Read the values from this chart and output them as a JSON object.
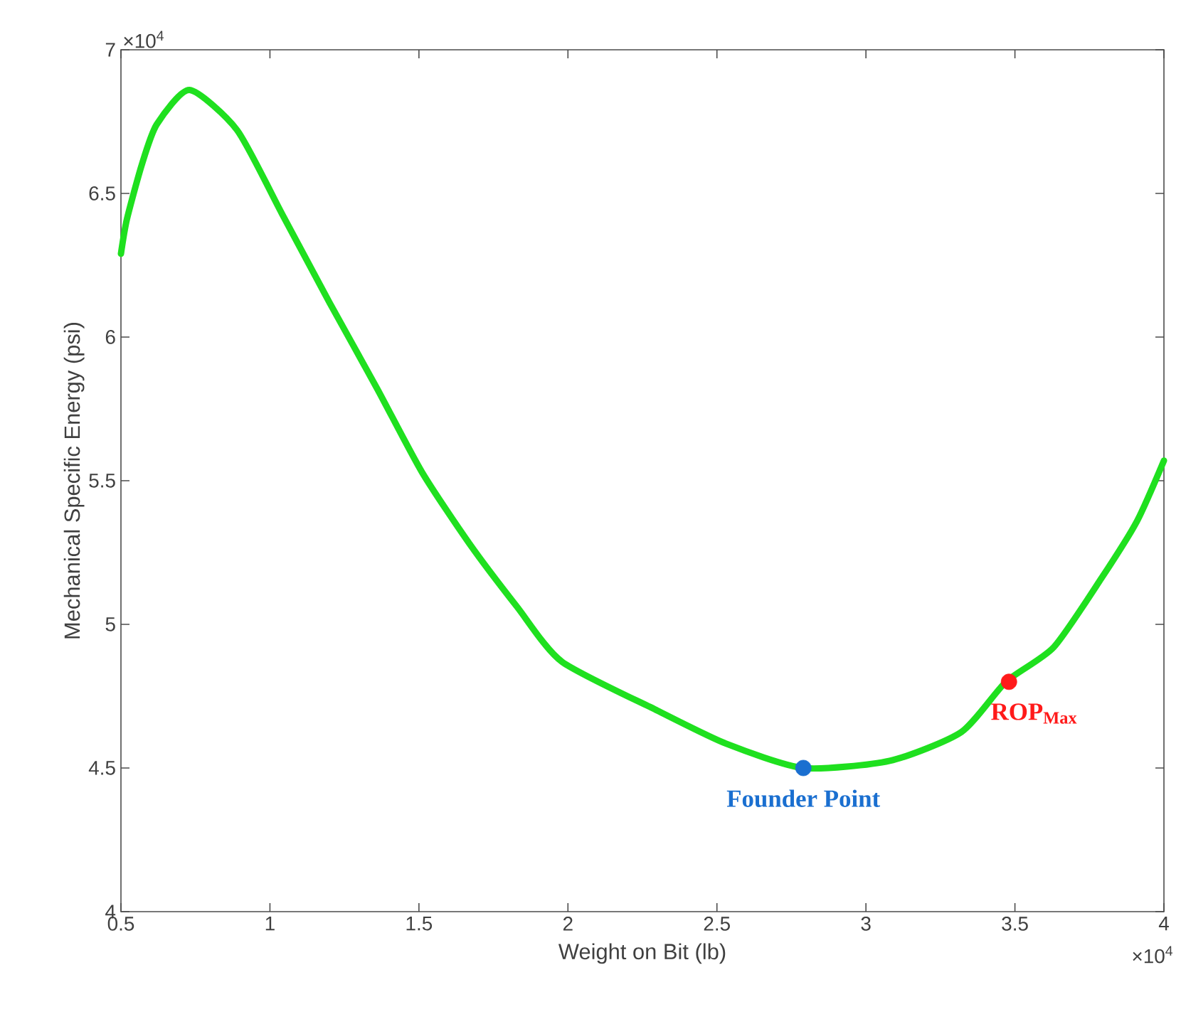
{
  "chart_data": {
    "type": "line",
    "xlabel": "Weight on Bit (lb)",
    "ylabel": "Mechanical Specific Energy (psi)",
    "xlim": [
      0.5,
      4
    ],
    "ylim": [
      4,
      7
    ],
    "xticks": [
      0.5,
      1,
      1.5,
      2,
      2.5,
      3,
      3.5,
      4
    ],
    "yticks": [
      4,
      4.5,
      5,
      5.5,
      6,
      6.5,
      7
    ],
    "grid": false,
    "series": [
      {
        "color": "#1fe01f",
        "x": [
          0.5,
          0.52,
          0.57,
          0.62,
          0.73,
          0.89,
          1.04,
          1.2,
          1.36,
          1.51,
          1.67,
          1.83,
          1.98,
          2.3,
          2.53,
          2.79,
          3.08,
          3.32,
          3.47,
          3.63,
          3.79,
          3.91,
          4.0
        ],
        "values": [
          6.29,
          6.41,
          6.6,
          6.74,
          6.86,
          6.72,
          6.43,
          6.12,
          5.82,
          5.53,
          5.28,
          5.06,
          4.87,
          4.7,
          4.585,
          4.5,
          4.525,
          4.625,
          4.8,
          4.92,
          5.16,
          5.36,
          5.57
        ]
      },
      {
        "type": "scatter",
        "color": "#1a6fd0",
        "x": [
          2.79
        ],
        "values": [
          4.5
        ]
      },
      {
        "type": "scatter",
        "color": "#ff1a1a",
        "x": [
          3.48
        ],
        "values": [
          4.8
        ]
      }
    ],
    "annotations": [
      "×10$^{4}$",
      "×10$^{4}$",
      {
        "text": "Founder Point",
        "x": 2.79,
        "y": 4.5
      },
      {
        "text": "ROP$_{Max}$",
        "x": 3.48,
        "y": 4.8
      }
    ]
  }
}
